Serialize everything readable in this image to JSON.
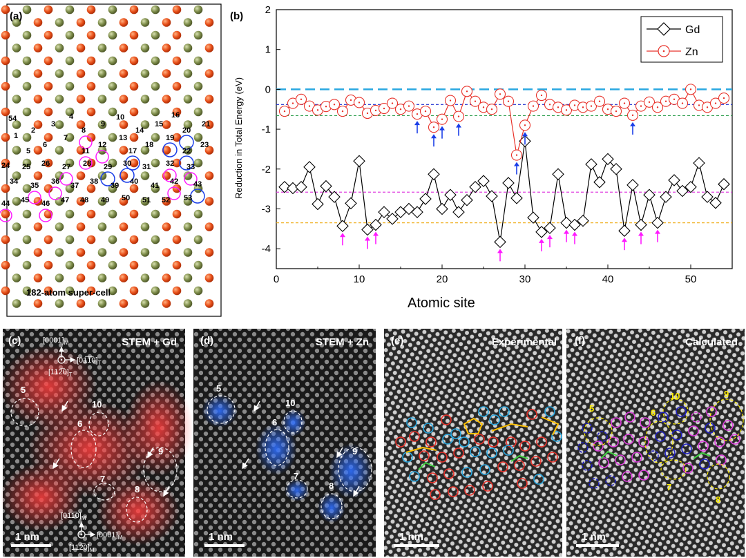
{
  "panels": {
    "a": {
      "label": "(a)",
      "caption": "182-atom super-cell",
      "site_numbers": [
        "1",
        "2",
        "3",
        "4",
        "5",
        "6",
        "7",
        "8",
        "9",
        "10",
        "11",
        "12",
        "13",
        "14",
        "15",
        "16",
        "17",
        "18",
        "19",
        "20",
        "21",
        "22",
        "23",
        "24",
        "25",
        "26",
        "27",
        "28",
        "29",
        "30",
        "31",
        "32",
        "33",
        "34",
        "35",
        "36",
        "37",
        "38",
        "39",
        "40",
        "41",
        "42",
        "43",
        "44",
        "45",
        "46",
        "47",
        "48",
        "49",
        "50",
        "51",
        "52",
        "53",
        "54"
      ]
    },
    "b": {
      "label": "(b)"
    },
    "c": {
      "label": "(c)",
      "title": "STEM + Gd",
      "scalebar": "1 nm",
      "dir_top_1": "[0001]",
      "dir_top_1_sub": "M",
      "dir_top_2": "[01̅1̅0]",
      "dir_top_2_sub": "T",
      "dir_top_3": "[112̅0]",
      "dir_top_3_sub": "T",
      "dir_bot_1": "[011̅0]",
      "dir_bot_1_sub": "M",
      "dir_bot_2": "[0001]",
      "dir_bot_2_sub": "M",
      "dir_bot_3": "[112̅0]",
      "dir_bot_3_sub": "M",
      "regions": [
        "5",
        "10",
        "6",
        "9",
        "7",
        "8"
      ]
    },
    "d": {
      "label": "(d)",
      "title": "STEM + Zn",
      "scalebar": "1 nm",
      "regions": [
        "5",
        "10",
        "6",
        "9",
        "7",
        "8"
      ]
    },
    "e": {
      "label": "(e)",
      "title": "Experimental",
      "scalebar": "1 nm"
    },
    "f": {
      "label": "(f)",
      "title": "Calculated",
      "scalebar": "1 nm",
      "regions": [
        "5",
        "10",
        "9",
        "6",
        "7",
        "8"
      ]
    }
  },
  "colors": {
    "gd": "#000000",
    "zn": "#e8322a",
    "orange_atom": "#e8501a",
    "green_atom": "#7d8c4a",
    "blue_arrow": "#1a3ee8",
    "magenta_arrow": "#ff1aff",
    "cyan_dash": "#29a8e0",
    "blue_dash": "#2030d0",
    "green_dash": "#30a050",
    "magenta_dash": "#e040e0",
    "orange_dash": "#f0b020"
  },
  "chart_data": {
    "type": "line",
    "xlabel": "Atomic site",
    "ylabel": "Reduction in Total Energy (eV)",
    "xlim": [
      0,
      55
    ],
    "ylim": [
      -4.5,
      2
    ],
    "xticks": [
      "0",
      "10",
      "20",
      "30",
      "40",
      "50"
    ],
    "yticks": [
      "2",
      "1",
      "0",
      "-1",
      "-2",
      "-3",
      "-4"
    ],
    "legend_position": "top-right",
    "series": [
      {
        "name": "Gd",
        "marker": "diamond",
        "x": [
          1,
          2,
          3,
          4,
          5,
          6,
          7,
          8,
          9,
          10,
          11,
          12,
          13,
          14,
          15,
          16,
          17,
          18,
          19,
          20,
          21,
          22,
          23,
          24,
          25,
          26,
          27,
          28,
          29,
          30,
          31,
          32,
          33,
          34,
          35,
          36,
          37,
          38,
          39,
          40,
          41,
          42,
          43,
          44,
          45,
          46,
          47,
          48,
          49,
          50,
          51,
          52,
          53,
          54
        ],
        "values": [
          -2.45,
          -2.48,
          -2.45,
          -1.95,
          -2.88,
          -2.43,
          -2.7,
          -3.43,
          -2.86,
          -1.8,
          -3.52,
          -3.4,
          -3.08,
          -3.25,
          -3.08,
          -3.0,
          -3.08,
          -2.75,
          -2.13,
          -3.0,
          -2.65,
          -3.08,
          -2.78,
          -2.45,
          -2.3,
          -2.68,
          -3.83,
          -2.35,
          -2.73,
          -1.3,
          -3.22,
          -3.58,
          -3.48,
          -2.13,
          -3.35,
          -3.4,
          -3.3,
          -1.88,
          -2.33,
          -1.75,
          -2.0,
          -3.55,
          -2.4,
          -3.4,
          -2.65,
          -3.35,
          -2.7,
          -2.28,
          -2.55,
          -2.45,
          -1.85,
          -2.7,
          -2.85,
          -2.38
        ]
      },
      {
        "name": "Zn",
        "marker": "circle-dot",
        "x": [
          1,
          2,
          3,
          4,
          5,
          6,
          7,
          8,
          9,
          10,
          11,
          12,
          13,
          14,
          15,
          16,
          17,
          18,
          19,
          20,
          21,
          22,
          23,
          24,
          25,
          26,
          27,
          28,
          29,
          30,
          31,
          32,
          33,
          34,
          35,
          36,
          37,
          38,
          39,
          40,
          41,
          42,
          43,
          44,
          45,
          46,
          47,
          48,
          49,
          50,
          51,
          52,
          53,
          54
        ],
        "values": [
          -0.55,
          -0.35,
          -0.25,
          -0.42,
          -0.52,
          -0.43,
          -0.38,
          -0.55,
          -0.27,
          -0.33,
          -0.6,
          -0.53,
          -0.48,
          -0.35,
          -0.5,
          -0.42,
          -0.62,
          -0.55,
          -0.95,
          -0.75,
          -0.28,
          -0.68,
          -0.05,
          -0.3,
          -0.45,
          -0.5,
          -0.12,
          -0.3,
          -1.65,
          -0.9,
          -0.42,
          -0.15,
          -0.38,
          -0.45,
          -0.52,
          -0.4,
          -0.45,
          -0.42,
          -0.3,
          -0.5,
          -0.55,
          -0.35,
          -0.65,
          -0.42,
          -0.32,
          -0.45,
          -0.3,
          -0.25,
          -0.35,
          0.0,
          -0.4,
          -0.45,
          -0.35,
          -0.22
        ]
      }
    ],
    "reference_lines": [
      0.0,
      -0.38,
      -0.66,
      -2.58,
      -3.35
    ],
    "blue_arrow_sites": [
      17,
      19,
      20,
      22,
      29,
      30,
      43
    ],
    "magenta_arrow_sites": [
      8,
      11,
      12,
      27,
      32,
      33,
      35,
      36,
      42,
      44,
      46
    ]
  }
}
